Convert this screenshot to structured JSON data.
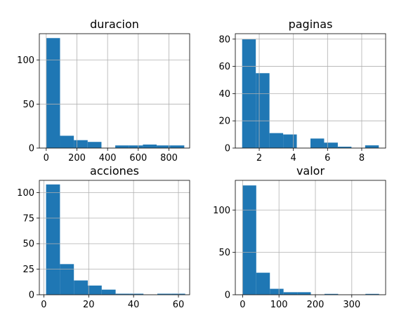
{
  "colors": {
    "bar": "#1f77b4",
    "grid": "#b0b0b0"
  },
  "chart_data": [
    {
      "type": "bar",
      "title": "duracion",
      "grid": true,
      "xlim": [
        -45,
        935
      ],
      "ylim": [
        0,
        130
      ],
      "xticks": [
        0,
        200,
        400,
        600,
        800
      ],
      "yticks": [
        0,
        50,
        100
      ],
      "bins": [
        {
          "x0": 0,
          "x1": 90,
          "value": 125
        },
        {
          "x0": 90,
          "x1": 180,
          "value": 14
        },
        {
          "x0": 180,
          "x1": 270,
          "value": 9
        },
        {
          "x0": 270,
          "x1": 360,
          "value": 7
        },
        {
          "x0": 360,
          "x1": 450,
          "value": 0
        },
        {
          "x0": 450,
          "x1": 540,
          "value": 3
        },
        {
          "x0": 540,
          "x1": 630,
          "value": 3
        },
        {
          "x0": 630,
          "x1": 720,
          "value": 4
        },
        {
          "x0": 720,
          "x1": 810,
          "value": 3
        },
        {
          "x0": 810,
          "x1": 900,
          "value": 3
        }
      ]
    },
    {
      "type": "bar",
      "title": "paginas",
      "grid": true,
      "xlim": [
        0.6,
        9.4
      ],
      "ylim": [
        0,
        84
      ],
      "xticks": [
        2,
        4,
        6,
        8
      ],
      "yticks": [
        0,
        20,
        40,
        60,
        80
      ],
      "bins": [
        {
          "x0": 1,
          "x1": 1.8,
          "value": 80
        },
        {
          "x0": 1.8,
          "x1": 2.6,
          "value": 55
        },
        {
          "x0": 2.6,
          "x1": 3.4,
          "value": 11
        },
        {
          "x0": 3.4,
          "x1": 4.2,
          "value": 10
        },
        {
          "x0": 4.2,
          "x1": 5.0,
          "value": 0
        },
        {
          "x0": 5.0,
          "x1": 5.8,
          "value": 7
        },
        {
          "x0": 5.8,
          "x1": 6.6,
          "value": 4
        },
        {
          "x0": 6.6,
          "x1": 7.4,
          "value": 1
        },
        {
          "x0": 7.4,
          "x1": 8.2,
          "value": 0
        },
        {
          "x0": 8.2,
          "x1": 9.0,
          "value": 2
        }
      ]
    },
    {
      "type": "bar",
      "title": "acciones",
      "grid": true,
      "xlim": [
        -2,
        65
      ],
      "ylim": [
        0,
        112
      ],
      "xticks": [
        0,
        20,
        40,
        60
      ],
      "yticks": [
        0,
        25,
        50,
        75,
        100
      ],
      "bins": [
        {
          "x0": 1,
          "x1": 7.2,
          "value": 108
        },
        {
          "x0": 7.2,
          "x1": 13.4,
          "value": 30
        },
        {
          "x0": 13.4,
          "x1": 19.6,
          "value": 14
        },
        {
          "x0": 19.6,
          "x1": 25.8,
          "value": 9
        },
        {
          "x0": 25.8,
          "x1": 32.0,
          "value": 5
        },
        {
          "x0": 32.0,
          "x1": 38.2,
          "value": 1
        },
        {
          "x0": 38.2,
          "x1": 44.4,
          "value": 1
        },
        {
          "x0": 44.4,
          "x1": 50.6,
          "value": 0
        },
        {
          "x0": 50.6,
          "x1": 56.8,
          "value": 1
        },
        {
          "x0": 56.8,
          "x1": 63.0,
          "value": 1
        }
      ]
    },
    {
      "type": "bar",
      "title": "valor",
      "grid": true,
      "xlim": [
        -20,
        393
      ],
      "ylim": [
        0,
        135
      ],
      "xticks": [
        0,
        100,
        200,
        300
      ],
      "yticks": [
        0,
        50,
        100
      ],
      "bins": [
        {
          "x0": 0,
          "x1": 37.5,
          "value": 129
        },
        {
          "x0": 37.5,
          "x1": 75,
          "value": 26
        },
        {
          "x0": 75,
          "x1": 112.5,
          "value": 7
        },
        {
          "x0": 112.5,
          "x1": 150,
          "value": 3
        },
        {
          "x0": 150,
          "x1": 187.5,
          "value": 3
        },
        {
          "x0": 187.5,
          "x1": 225,
          "value": 0
        },
        {
          "x0": 225,
          "x1": 262.5,
          "value": 1
        },
        {
          "x0": 262.5,
          "x1": 300,
          "value": 0
        },
        {
          "x0": 300,
          "x1": 337.5,
          "value": 0
        },
        {
          "x0": 337.5,
          "x1": 375,
          "value": 1
        }
      ]
    }
  ]
}
